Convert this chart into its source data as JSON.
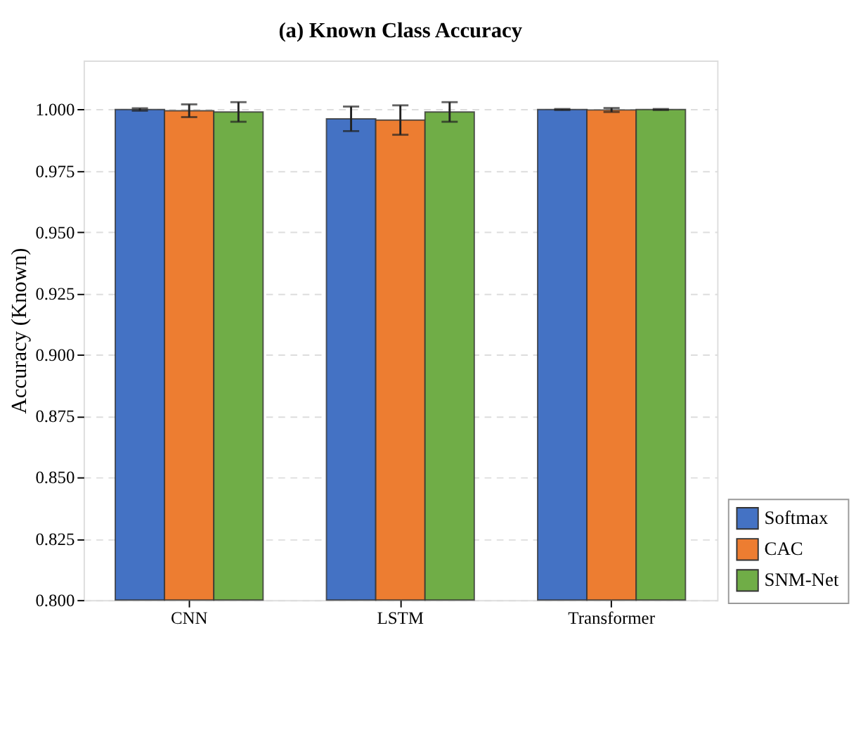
{
  "chart_data": {
    "type": "bar",
    "title": "(a) Known Class Accuracy",
    "ylabel": "Accuracy (Known)",
    "categories": [
      "CNN",
      "LSTM",
      "Transformer"
    ],
    "series": [
      {
        "name": "Softmax",
        "color": "#4472c4",
        "values": [
          1.0,
          0.9962,
          1.0
        ],
        "errors": [
          0.0005,
          0.005,
          0.0002
        ]
      },
      {
        "name": "CAC",
        "color": "#ed7d31",
        "values": [
          0.9995,
          0.9957,
          0.9998
        ],
        "errors": [
          0.0026,
          0.006,
          0.0008
        ]
      },
      {
        "name": "SNM-Net",
        "color": "#70ad47",
        "values": [
          0.999,
          0.999,
          1.0
        ],
        "errors": [
          0.004,
          0.004,
          0.0002
        ]
      }
    ],
    "ylim": [
      0.8,
      1.02
    ],
    "yticks": [
      {
        "value": 0.8,
        "label": "0.800"
      },
      0.825,
      {
        "value": 0.85,
        "label": "0.850"
      },
      0.875,
      {
        "value": 0.9,
        "label": "0.900"
      },
      0.925,
      {
        "value": 0.95,
        "label": "0.950"
      },
      0.975,
      {
        "value": 1.0,
        "label": "1.000"
      }
    ],
    "grid": "y",
    "legend": "bottom right"
  }
}
